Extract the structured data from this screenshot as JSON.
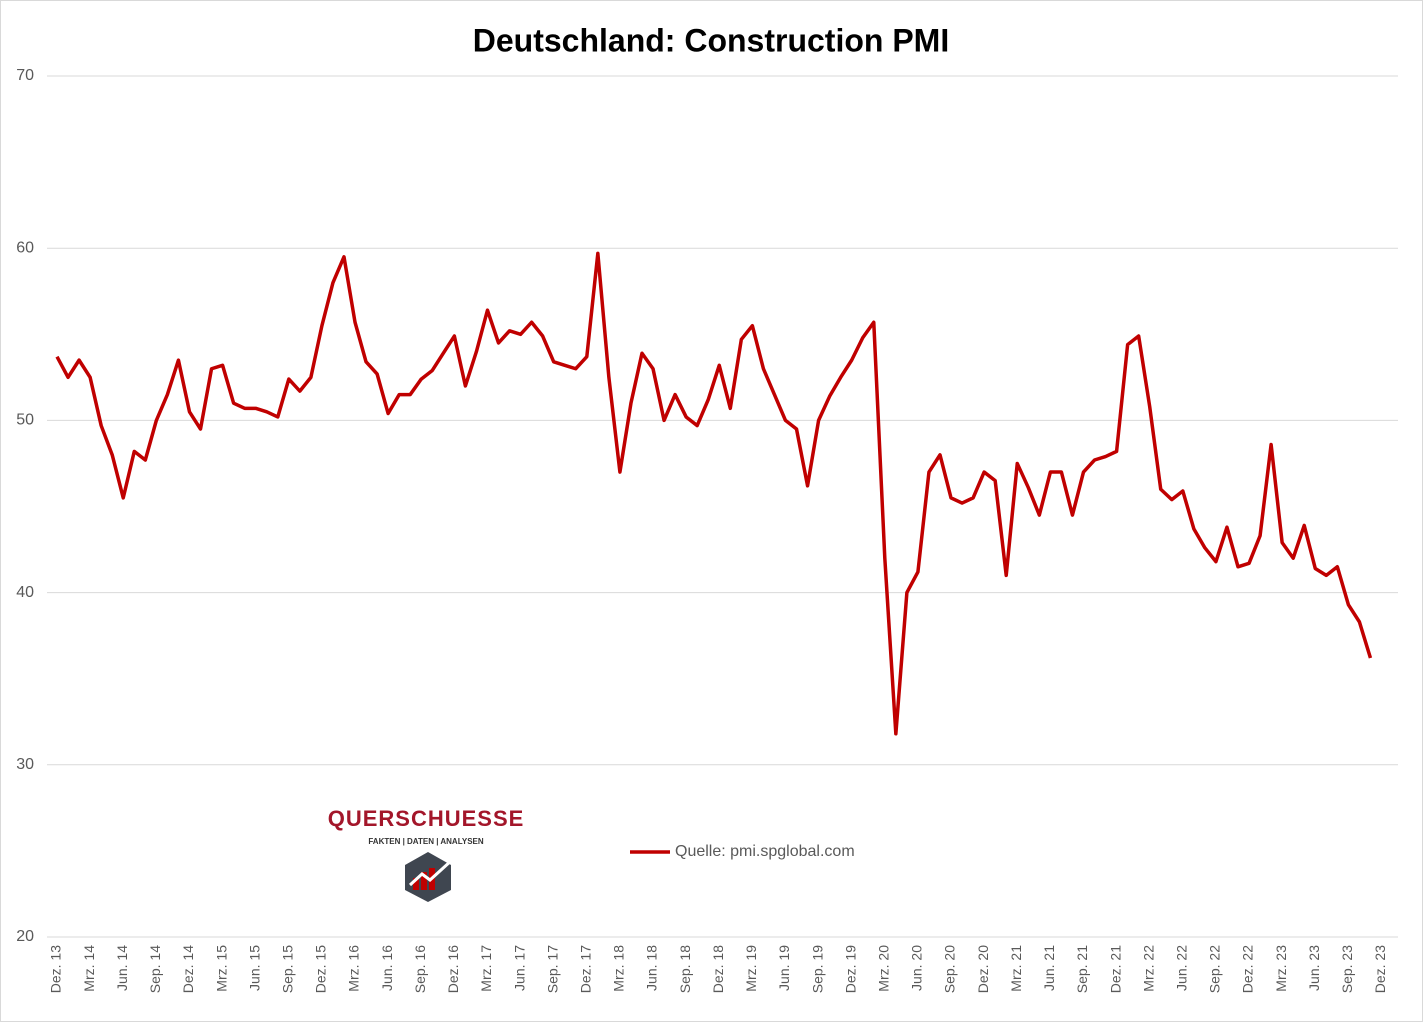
{
  "chart_data": {
    "type": "line",
    "title": "Deutschland: Construction PMI",
    "categories": [
      "Dez. 13",
      null,
      null,
      "Mrz. 14",
      null,
      null,
      "Jun. 14",
      null,
      null,
      "Sep. 14",
      null,
      null,
      "Dez. 14",
      null,
      null,
      "Mrz. 15",
      null,
      null,
      "Jun. 15",
      null,
      null,
      "Sep. 15",
      null,
      null,
      "Dez. 15",
      null,
      null,
      "Mrz. 16",
      null,
      null,
      "Jun. 16",
      null,
      null,
      "Sep. 16",
      null,
      null,
      "Dez. 16",
      null,
      null,
      "Mrz. 17",
      null,
      null,
      "Jun. 17",
      null,
      null,
      "Sep. 17",
      null,
      null,
      "Dez. 17",
      null,
      null,
      "Mrz. 18",
      null,
      null,
      "Jun. 18",
      null,
      null,
      "Sep. 18",
      null,
      null,
      "Dez. 18",
      null,
      null,
      "Mrz. 19",
      null,
      null,
      "Jun. 19",
      null,
      null,
      "Sep. 19",
      null,
      null,
      "Dez. 19",
      null,
      null,
      "Mrz. 20",
      null,
      null,
      "Jun. 20",
      null,
      null,
      "Sep. 20",
      null,
      null,
      "Dez. 20",
      null,
      null,
      "Mrz. 21",
      null,
      null,
      "Jun. 21",
      null,
      null,
      "Sep. 21",
      null,
      null,
      "Dez. 21",
      null,
      null,
      "Mrz. 22",
      null,
      null,
      "Jun. 22",
      null,
      null,
      "Sep. 22",
      null,
      null,
      "Dez. 22",
      null,
      null,
      "Mrz. 23",
      null,
      null,
      "Jun. 23",
      null,
      null,
      "Sep. 23",
      null,
      null,
      "Dez. 23"
    ],
    "series": [
      {
        "name": "Quelle: pmi.spglobal.com",
        "color": "#c00000",
        "values": [
          53.7,
          52.5,
          53.5,
          52.5,
          49.7,
          48.0,
          45.5,
          48.2,
          47.7,
          50.0,
          51.5,
          53.5,
          50.5,
          49.5,
          53.0,
          53.2,
          51.0,
          50.7,
          50.7,
          50.5,
          50.2,
          52.4,
          51.7,
          52.5,
          55.5,
          58.0,
          59.5,
          55.7,
          53.4,
          52.7,
          50.4,
          51.5,
          51.5,
          52.4,
          52.9,
          53.9,
          54.9,
          52.0,
          54.0,
          56.4,
          54.5,
          55.2,
          55.0,
          55.7,
          54.9,
          53.4,
          53.2,
          53.0,
          53.7,
          59.7,
          52.5,
          47.0,
          51.0,
          53.9,
          53.0,
          50.0,
          51.5,
          50.2,
          49.7,
          51.2,
          53.2,
          50.7,
          54.7,
          55.5,
          53.0,
          51.5,
          50.0,
          49.5,
          46.2,
          50.0,
          51.4,
          52.5,
          53.5,
          54.8,
          55.7,
          42.0,
          31.8,
          40.0,
          41.2,
          47.0,
          48.0,
          45.5,
          45.2,
          45.5,
          47.0,
          46.5,
          41.0,
          47.5,
          46.1,
          44.5,
          47.0,
          47.0,
          44.5,
          47.0,
          47.7,
          47.9,
          48.2,
          54.4,
          54.9,
          50.8,
          46.0,
          45.4,
          45.9,
          43.7,
          42.6,
          41.8,
          43.8,
          41.5,
          41.7,
          43.3,
          48.6,
          42.9,
          42.0,
          43.9,
          41.4,
          41.0,
          41.5,
          39.3,
          38.3,
          36.2,
          null
        ]
      }
    ],
    "ylim": [
      20,
      70
    ],
    "yticks": [
      20,
      30,
      40,
      50,
      60,
      70
    ],
    "grid": true
  },
  "logo": {
    "name": "QUERSCHUESSE",
    "tagline": "FAKTEN | DATEN | ANALYSEN"
  }
}
